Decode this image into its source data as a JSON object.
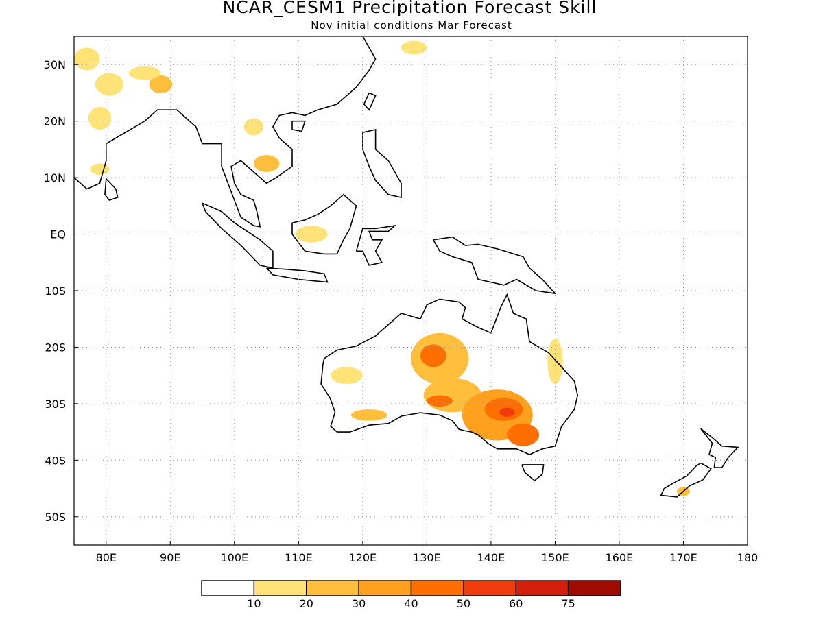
{
  "title": "NCAR_CESM1 Precipitation Forecast Skill",
  "subtitle": "Nov initial conditions  Mar Forecast",
  "map": {
    "lon_range": [
      75,
      180
    ],
    "lat_range": [
      -55,
      35
    ],
    "lon_ticks": [
      80,
      90,
      100,
      110,
      120,
      130,
      140,
      150,
      160,
      170,
      180
    ],
    "lon_labels": [
      "80E",
      "90E",
      "100E",
      "110E",
      "120E",
      "130E",
      "140E",
      "150E",
      "160E",
      "170E",
      "180"
    ],
    "lat_ticks": [
      30,
      20,
      10,
      0,
      -10,
      -20,
      -30,
      -40,
      -50
    ],
    "lat_labels": [
      "30N",
      "20N",
      "10N",
      "EQ",
      "10S",
      "20S",
      "30S",
      "40S",
      "50S"
    ],
    "grid": "dotted"
  },
  "colorbar": {
    "levels": [
      "10",
      "20",
      "30",
      "40",
      "50",
      "60",
      "75"
    ],
    "colors": [
      "#ffffff",
      "#ffe378",
      "#ffbe3c",
      "#ffa01e",
      "#ff6e00",
      "#f03c0a",
      "#d21e0a",
      "#a00a00"
    ]
  },
  "skill_regions": [
    {
      "lon": 80.5,
      "lat": 26.5,
      "rx": 2.2,
      "ry": 2.0,
      "level": 1
    },
    {
      "lon": 79.0,
      "lat": 20.5,
      "rx": 1.8,
      "ry": 2.0,
      "level": 1
    },
    {
      "lon": 88.5,
      "lat": 26.5,
      "rx": 1.8,
      "ry": 1.6,
      "level": 2
    },
    {
      "lon": 86.0,
      "lat": 28.5,
      "rx": 2.5,
      "ry": 1.2,
      "level": 1
    },
    {
      "lon": 77.0,
      "lat": 31.0,
      "rx": 2.0,
      "ry": 2.0,
      "level": 1
    },
    {
      "lon": 79.0,
      "lat": 11.5,
      "rx": 1.5,
      "ry": 1.0,
      "level": 1
    },
    {
      "lon": 105.0,
      "lat": 12.5,
      "rx": 2.0,
      "ry": 1.5,
      "level": 2
    },
    {
      "lon": 103.0,
      "lat": 19.0,
      "rx": 1.5,
      "ry": 1.5,
      "level": 1
    },
    {
      "lon": 112.0,
      "lat": 0.0,
      "rx": 2.5,
      "ry": 1.5,
      "level": 1
    },
    {
      "lon": 128.0,
      "lat": 33.0,
      "rx": 2.0,
      "ry": 1.2,
      "level": 1
    },
    {
      "lon": 117.5,
      "lat": -25.0,
      "rx": 2.5,
      "ry": 1.5,
      "level": 1
    },
    {
      "lon": 121.0,
      "lat": -32.0,
      "rx": 2.8,
      "ry": 1.0,
      "level": 2
    },
    {
      "lon": 132.0,
      "lat": -22.0,
      "rx": 4.5,
      "ry": 4.5,
      "level": 2
    },
    {
      "lon": 131.0,
      "lat": -21.5,
      "rx": 2.0,
      "ry": 2.0,
      "level": 4
    },
    {
      "lon": 134.0,
      "lat": -28.5,
      "rx": 4.5,
      "ry": 3.0,
      "level": 2
    },
    {
      "lon": 132.0,
      "lat": -29.5,
      "rx": 2.0,
      "ry": 1.0,
      "level": 4
    },
    {
      "lon": 141.0,
      "lat": -32.0,
      "rx": 5.5,
      "ry": 4.5,
      "level": 3
    },
    {
      "lon": 142.0,
      "lat": -31.0,
      "rx": 3.0,
      "ry": 2.0,
      "level": 4
    },
    {
      "lon": 142.5,
      "lat": -31.5,
      "rx": 1.2,
      "ry": 0.8,
      "level": 5
    },
    {
      "lon": 145.0,
      "lat": -35.5,
      "rx": 2.5,
      "ry": 2.0,
      "level": 4
    },
    {
      "lon": 150.0,
      "lat": -22.5,
      "rx": 1.2,
      "ry": 4.0,
      "level": 1
    },
    {
      "lon": 170.0,
      "lat": -45.5,
      "rx": 1.0,
      "ry": 0.8,
      "level": 2
    }
  ]
}
